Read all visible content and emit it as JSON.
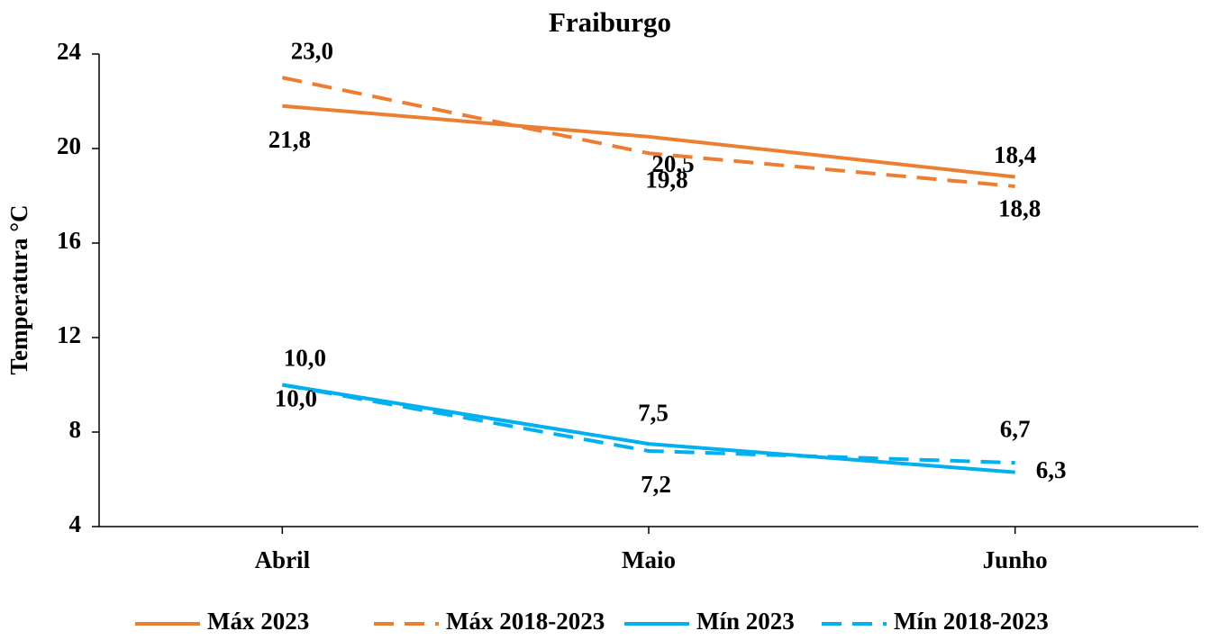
{
  "chart_data": {
    "type": "line",
    "title": "Fraiburgo",
    "y_label": "Temperatura °C",
    "categories": [
      "Abril",
      "Maio",
      "Junho"
    ],
    "ylim": [
      4,
      24
    ],
    "yticks": [
      4,
      8,
      12,
      16,
      20,
      24
    ],
    "legend": "bottom",
    "series": [
      {
        "name": "Máx 2023",
        "color": "#ed7d31",
        "dash": false,
        "values": [
          21.8,
          20.5,
          18.8
        ],
        "value_labels": [
          "21,8",
          "20,5",
          "18,8"
        ]
      },
      {
        "name": "Máx 2018-2023",
        "color": "#ed7d31",
        "dash": true,
        "values": [
          23.0,
          19.8,
          18.4
        ],
        "value_labels": [
          "23,0",
          "19,8",
          "18,4"
        ]
      },
      {
        "name": "Mín 2023",
        "color": "#00b0f0",
        "dash": false,
        "values": [
          10.0,
          7.5,
          6.3
        ],
        "value_labels": [
          "10,0",
          "7,5",
          "6,3"
        ]
      },
      {
        "name": "Mín 2018-2023",
        "color": "#00b0f0",
        "dash": true,
        "values": [
          10.0,
          7.2,
          6.7
        ],
        "value_labels": [
          "10,0",
          "7,2",
          "6,7"
        ]
      }
    ]
  }
}
